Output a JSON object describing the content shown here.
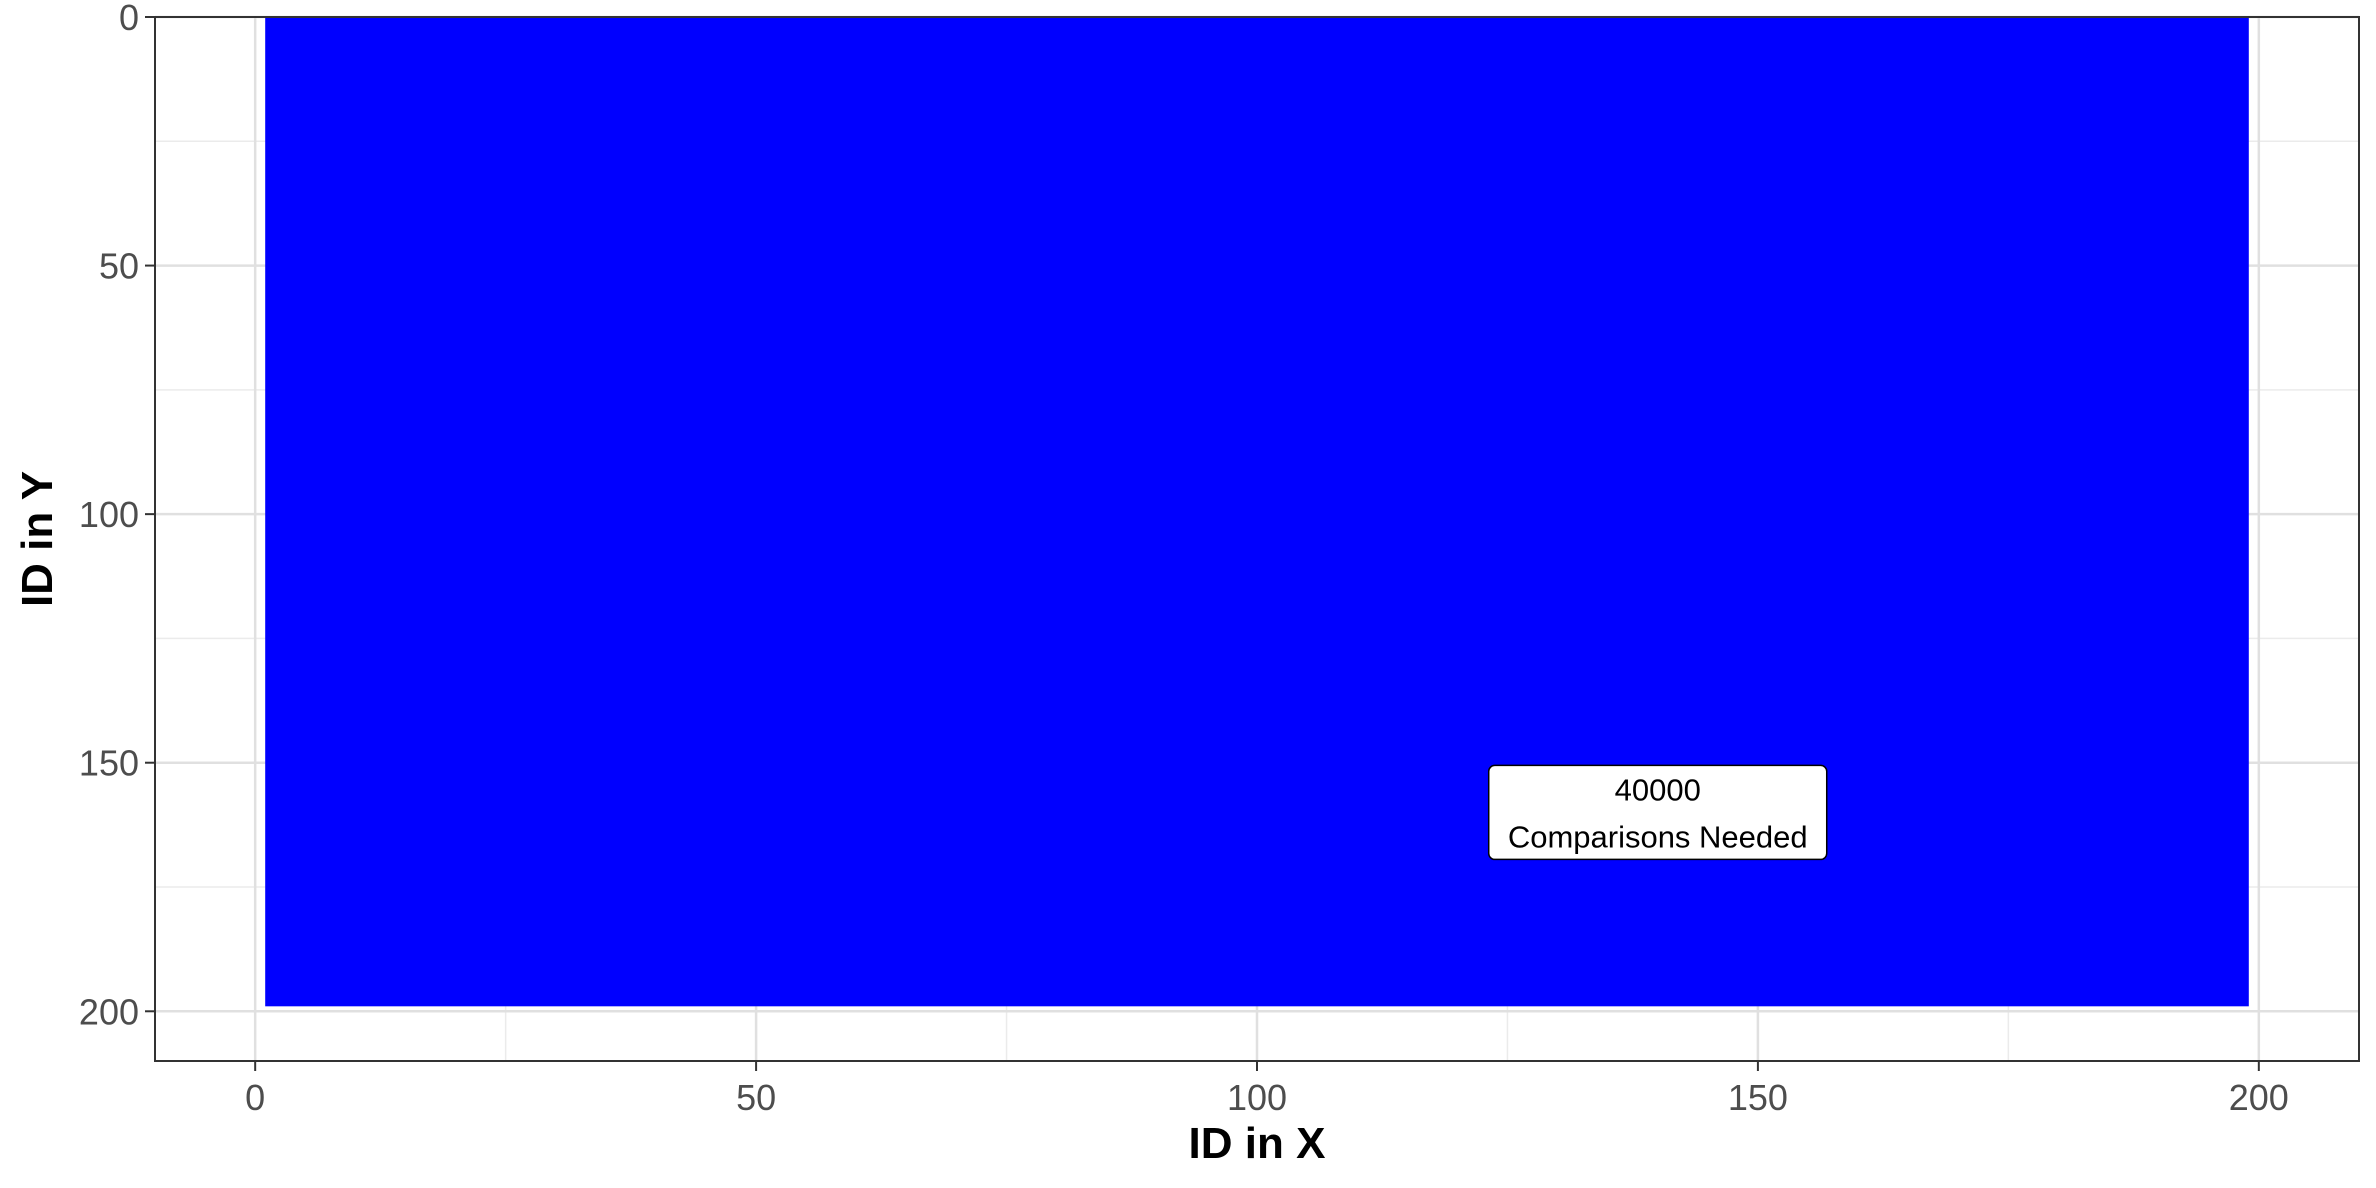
{
  "chart_data": {
    "type": "heatmap",
    "xlabel": "ID in X",
    "ylabel": "ID in Y",
    "xlim": [
      -10,
      210
    ],
    "ylim": [
      0,
      210
    ],
    "y_reversed": true,
    "x_ticks": [
      0,
      50,
      100,
      150,
      200
    ],
    "y_ticks": [
      0,
      50,
      100,
      150,
      200
    ],
    "grid": true,
    "fill_region": {
      "x": [
        1,
        199
      ],
      "y": [
        0,
        199
      ],
      "color": "#0000ff"
    },
    "annotation": {
      "x": 140,
      "y": 160,
      "lines": [
        "40000",
        "Comparisons Needed"
      ]
    }
  }
}
